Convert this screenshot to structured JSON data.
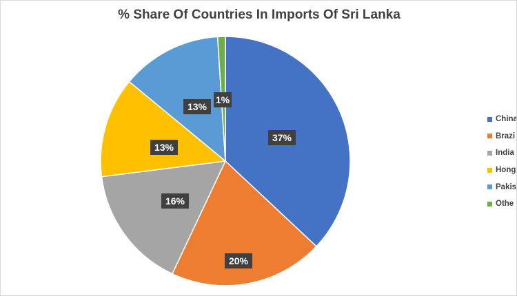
{
  "chart_data": {
    "type": "pie",
    "title": "% Share Of Countries In Imports Of Sri Lanka",
    "categories": [
      "China",
      "Brazil",
      "India",
      "Hong Kong",
      "Pakistan",
      "Others"
    ],
    "values": [
      37,
      20,
      16,
      13,
      13,
      1
    ],
    "data_labels": [
      "37%",
      "20%",
      "16%",
      "13%",
      "13%",
      "1%"
    ],
    "colors": [
      "#4472c4",
      "#ed7d31",
      "#a5a5a5",
      "#ffc000",
      "#5b9bd5",
      "#70ad47"
    ],
    "legend_position": "right",
    "legend_labels_visible": [
      "China",
      "Brazi",
      "India",
      "Hong",
      "Pakis",
      "Othe"
    ]
  }
}
